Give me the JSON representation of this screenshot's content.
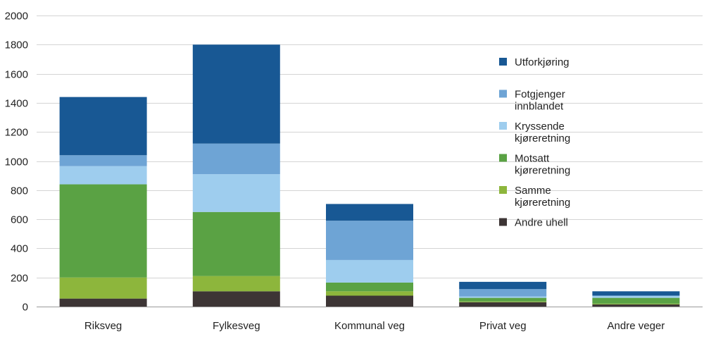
{
  "chart_data": {
    "type": "bar",
    "stacked": true,
    "title": "",
    "xlabel": "",
    "ylabel": "",
    "ylim": [
      0,
      2000
    ],
    "yticks": [
      0,
      200,
      400,
      600,
      800,
      1000,
      1200,
      1400,
      1600,
      1800,
      2000
    ],
    "grid": true,
    "legend_position": "right",
    "categories": [
      "Riksveg",
      "Fylkesveg",
      "Kommunal veg",
      "Privat veg",
      "Andre veger"
    ],
    "series": [
      {
        "name": "Andre uhell",
        "legend_lines": [
          "Andre uhell"
        ],
        "color": "#3d3535",
        "values": [
          55,
          105,
          75,
          30,
          15
        ]
      },
      {
        "name": "Samme kjøreretning",
        "legend_lines": [
          "Samme",
          "kjøreretning"
        ],
        "color": "#8db63c",
        "values": [
          145,
          105,
          30,
          5,
          5
        ]
      },
      {
        "name": "Motsatt kjøreretning",
        "legend_lines": [
          "Motsatt",
          "kjøreretning"
        ],
        "color": "#5aa244",
        "values": [
          640,
          440,
          60,
          25,
          40
        ]
      },
      {
        "name": "Kryssende kjøreretning",
        "legend_lines": [
          "Kryssende",
          "kjøreretning"
        ],
        "color": "#9ecdee",
        "values": [
          125,
          260,
          155,
          10,
          15
        ]
      },
      {
        "name": "Fotgjenger innblandet",
        "legend_lines": [
          "Fotgjenger",
          "innblandet"
        ],
        "color": "#6ea4d5",
        "values": [
          75,
          210,
          270,
          50,
          0
        ]
      },
      {
        "name": "Utforkjøring",
        "legend_lines": [
          "Utforkjøring"
        ],
        "color": "#185894",
        "values": [
          400,
          680,
          115,
          50,
          30
        ]
      }
    ]
  }
}
